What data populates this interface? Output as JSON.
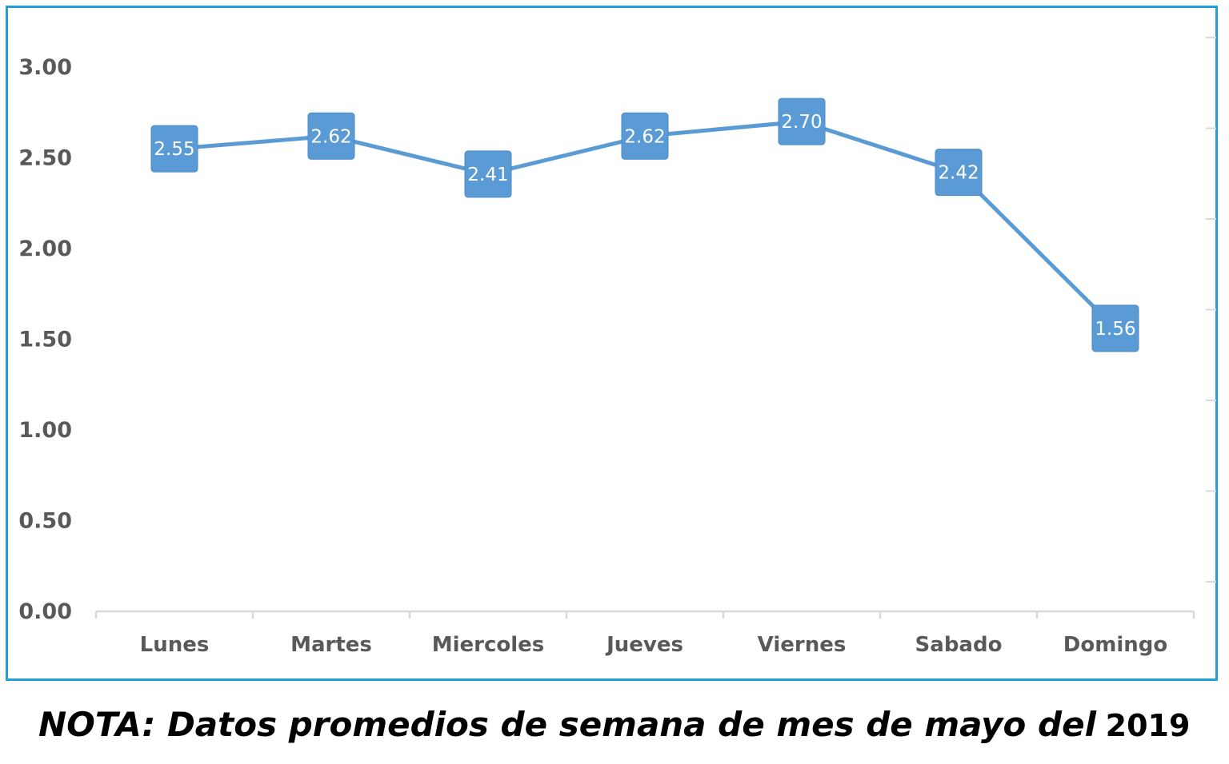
{
  "chart_data": {
    "type": "line",
    "categories": [
      "Lunes",
      "Martes",
      "Miercoles",
      "Jueves",
      "Viernes",
      "Sabado",
      "Domingo"
    ],
    "values": [
      2.55,
      2.62,
      2.41,
      2.62,
      2.7,
      2.42,
      1.56
    ],
    "data_labels": [
      "2.55",
      "2.62",
      "2.41",
      "2.62",
      "2.70",
      "2.42",
      "1.56"
    ],
    "yticks": [
      0,
      0.5,
      1,
      1.5,
      2,
      2.5,
      3
    ],
    "ytick_labels": [
      "0.00",
      "0.50",
      "1.00",
      "1.50",
      "2.00",
      "2.50",
      "3.00"
    ],
    "ylim": [
      0,
      3
    ],
    "grid": false,
    "legend": "none",
    "line_color": "#5b9bd5",
    "marker_color": "#5b9bd5",
    "frame_color": "#1ea0d8"
  },
  "note": {
    "text": "NOTA: Datos promedios de semana de mes de mayo del",
    "year": "2019"
  }
}
